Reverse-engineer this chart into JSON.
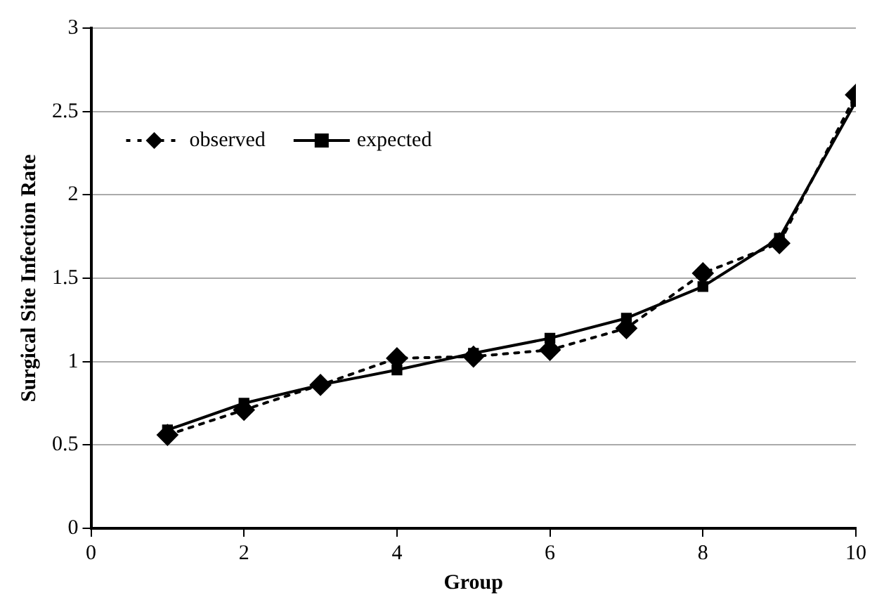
{
  "chart_data": {
    "type": "line",
    "xlabel": "Group",
    "ylabel": "Surgical Site Infection Rate",
    "x": [
      1,
      2,
      3,
      4,
      5,
      6,
      7,
      8,
      9,
      10
    ],
    "series": [
      {
        "name": "observed",
        "color": "#000000",
        "marker": "diamond",
        "line_style": "dotted",
        "values": [
          0.56,
          0.71,
          0.86,
          1.02,
          1.03,
          1.07,
          1.2,
          1.53,
          1.71,
          2.6
        ]
      },
      {
        "name": "expected",
        "color": "#000000",
        "marker": "square",
        "line_style": "solid",
        "values": [
          0.59,
          0.75,
          0.86,
          0.95,
          1.05,
          1.14,
          1.26,
          1.45,
          1.74,
          2.56
        ]
      }
    ],
    "xlim": [
      0,
      10
    ],
    "xticks": [
      0,
      2,
      4,
      6,
      8,
      10
    ],
    "ylim": [
      0,
      3
    ],
    "yticks": [
      0,
      0.5,
      1,
      1.5,
      2,
      2.5,
      3
    ],
    "grid": "y",
    "legend": "top left"
  }
}
